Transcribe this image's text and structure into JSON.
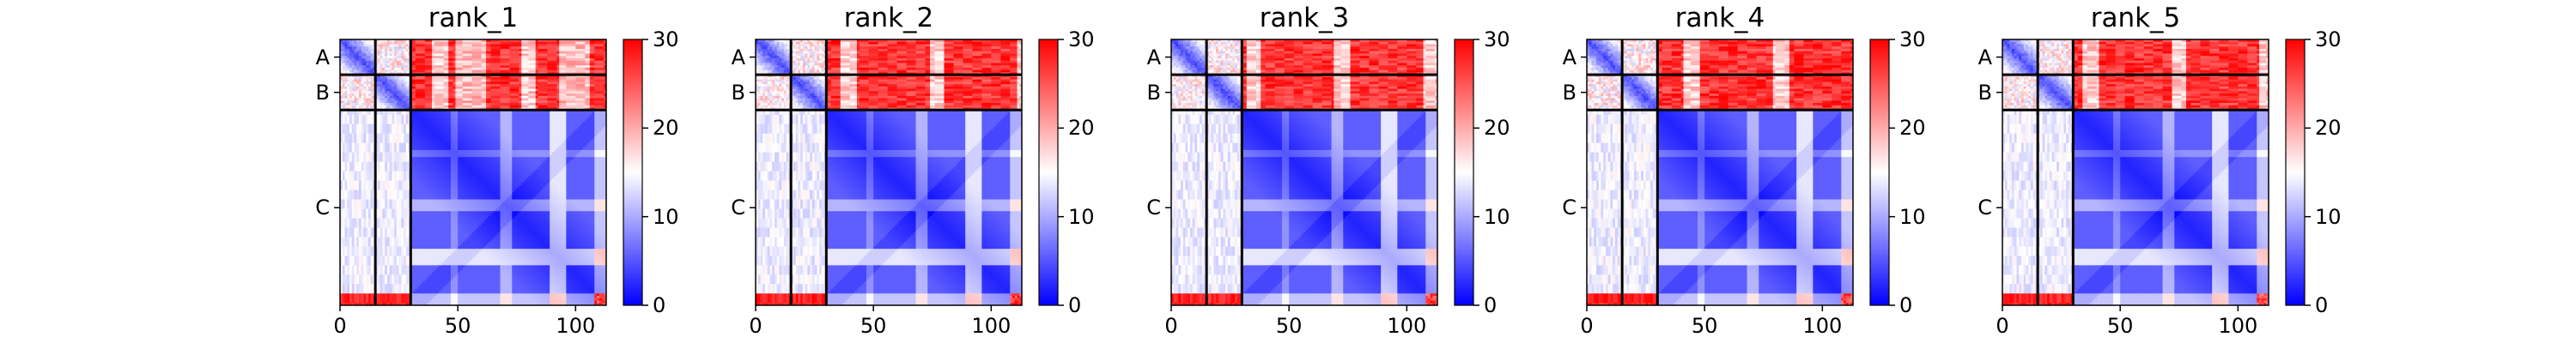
{
  "colors": {
    "low": "#0000ff",
    "mid": "#ffffff",
    "high": "#ff0000",
    "chain_boundary": "#000000"
  },
  "chart_data": [
    {
      "type": "heatmap",
      "title": "rank_1",
      "variant": 1
    },
    {
      "type": "heatmap",
      "title": "rank_2",
      "variant": 2
    },
    {
      "type": "heatmap",
      "title": "rank_3",
      "variant": 3
    },
    {
      "type": "heatmap",
      "title": "rank_4",
      "variant": 4
    },
    {
      "type": "heatmap",
      "title": "rank_5",
      "variant": 5
    }
  ],
  "shared": {
    "chains": [
      {
        "label": "A",
        "start": 0,
        "end": 15
      },
      {
        "label": "B",
        "start": 15,
        "end": 30
      },
      {
        "label": "C",
        "start": 30,
        "end": 113
      }
    ],
    "xlim": [
      0,
      113
    ],
    "xticks": [
      0,
      50,
      100
    ],
    "xtick_labels": [
      "0",
      "50",
      "100"
    ],
    "colorbar": {
      "range": [
        0,
        30
      ],
      "ticks": [
        0,
        10,
        20,
        30
      ],
      "tick_labels": [
        "0",
        "10",
        "20",
        "30"
      ],
      "colormap": "bwr"
    }
  }
}
